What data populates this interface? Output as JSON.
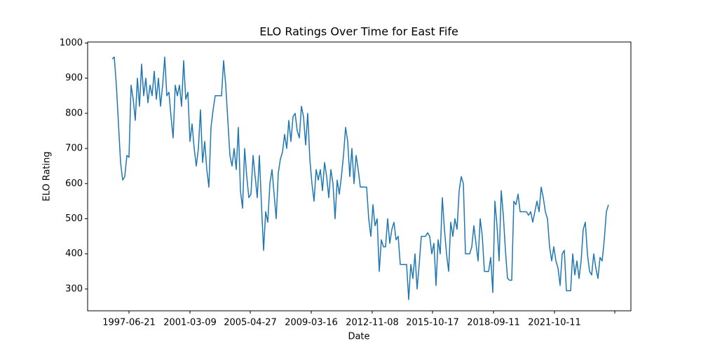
{
  "chart_data": {
    "type": "line",
    "title": "ELO Ratings Over Time for East Fife",
    "xlabel": "Date",
    "ylabel": "ELO Rating",
    "x": [
      0,
      3,
      6,
      9,
      12,
      15,
      18,
      21,
      24,
      27,
      30,
      33,
      36,
      39,
      42,
      45,
      48,
      51,
      54,
      57,
      60,
      63,
      66,
      69,
      72,
      75,
      78,
      81,
      84,
      87,
      90,
      93,
      96,
      99,
      102,
      105,
      108,
      111,
      114,
      117,
      120,
      123,
      126,
      129,
      132,
      135,
      138,
      141,
      144,
      147,
      150,
      153,
      156,
      159,
      162,
      165,
      168,
      171,
      174,
      177,
      180,
      183,
      186,
      189,
      192,
      195,
      198,
      201,
      204,
      207,
      210,
      213,
      216,
      219,
      222,
      225,
      228,
      231,
      234,
      237,
      240,
      243,
      246,
      249,
      252,
      255,
      258,
      261,
      264,
      267,
      270,
      273,
      276,
      279,
      282,
      285,
      288,
      291,
      294,
      297,
      300,
      303,
      306,
      309,
      312,
      315,
      318,
      321,
      324,
      327,
      330,
      333,
      336,
      339,
      342,
      345,
      348,
      351,
      354,
      357,
      360,
      363,
      366,
      369,
      372,
      375,
      378,
      381,
      384,
      387,
      390,
      393,
      396,
      399,
      402,
      405,
      408,
      411,
      414,
      417,
      420,
      423,
      426,
      429,
      432,
      435,
      438,
      441,
      444,
      447,
      450,
      453,
      456,
      459,
      462,
      465,
      468,
      471,
      474,
      477,
      480,
      483,
      486,
      489,
      492,
      495,
      498,
      501,
      504,
      507,
      510,
      513,
      516,
      519,
      522,
      525,
      528,
      531,
      534,
      537,
      540,
      543,
      546,
      549,
      552,
      555,
      558,
      561,
      564,
      567,
      570,
      573,
      576,
      579,
      582,
      585,
      588,
      591,
      594,
      597,
      600,
      603,
      606,
      609,
      612,
      615,
      618,
      621,
      624,
      627,
      630,
      633,
      636,
      639,
      642,
      645,
      648,
      651,
      654,
      657,
      660,
      663,
      666,
      669,
      672,
      675,
      678,
      681,
      684,
      687,
      690,
      693,
      696,
      699,
      702,
      705,
      708
    ],
    "series": [
      {
        "name": "East Fife",
        "color": "#1f77b4",
        "values": [
          955,
          960,
          880,
          770,
          660,
          610,
          620,
          680,
          675,
          880,
          840,
          780,
          900,
          820,
          940,
          850,
          900,
          830,
          880,
          850,
          920,
          840,
          900,
          820,
          880,
          960,
          850,
          860,
          790,
          730,
          880,
          850,
          880,
          820,
          950,
          840,
          860,
          720,
          770,
          700,
          650,
          700,
          810,
          660,
          720,
          640,
          590,
          760,
          810,
          850,
          850,
          850,
          850,
          950,
          880,
          780,
          680,
          650,
          700,
          640,
          760,
          580,
          530,
          700,
          620,
          560,
          570,
          680,
          620,
          560,
          680,
          540,
          410,
          520,
          490,
          600,
          640,
          570,
          500,
          630,
          670,
          690,
          740,
          700,
          780,
          720,
          790,
          800,
          750,
          730,
          820,
          790,
          710,
          800,
          670,
          600,
          550,
          640,
          610,
          640,
          580,
          660,
          620,
          560,
          640,
          600,
          500,
          610,
          570,
          620,
          680,
          760,
          720,
          620,
          700,
          600,
          680,
          640,
          590,
          590,
          590,
          590,
          500,
          450,
          540,
          480,
          500,
          350,
          440,
          420,
          420,
          500,
          430,
          470,
          490,
          440,
          450,
          370,
          370,
          370,
          370,
          270,
          370,
          330,
          400,
          300,
          370,
          450,
          450,
          450,
          460,
          450,
          400,
          430,
          310,
          440,
          400,
          560,
          470,
          400,
          350,
          490,
          450,
          500,
          470,
          580,
          620,
          600,
          400,
          400,
          400,
          420,
          480,
          430,
          380,
          500,
          450,
          350,
          350,
          350,
          390,
          290,
          550,
          480,
          380,
          580,
          510,
          410,
          330,
          325,
          325,
          550,
          540,
          570,
          520,
          520,
          520,
          520,
          510,
          520,
          490,
          520,
          550,
          520,
          590,
          560,
          520,
          500,
          420,
          380,
          420,
          380,
          360,
          310,
          400,
          410,
          295,
          295,
          295,
          400,
          340,
          380,
          330,
          380,
          470,
          490,
          400,
          350,
          340,
          400,
          360,
          330,
          390,
          380,
          440,
          520,
          540
        ]
      }
    ],
    "xlim": [
      -35,
      740
    ],
    "xticks": [
      {
        "value": 24,
        "label": "1997-06-21"
      },
      {
        "value": 111,
        "label": "2001-03-09"
      },
      {
        "value": 197,
        "label": "2005-04-27"
      },
      {
        "value": 284,
        "label": "2009-03-16"
      },
      {
        "value": 371,
        "label": "2012-11-08"
      },
      {
        "value": 457,
        "label": "2015-10-17"
      },
      {
        "value": 544,
        "label": "2018-09-11"
      },
      {
        "value": 631,
        "label": "2021-10-11"
      },
      {
        "value": 717,
        "label": null
      }
    ],
    "ylim": [
      238,
      1003
    ],
    "yticks": [
      300,
      400,
      500,
      600,
      700,
      800,
      900,
      1000
    ]
  }
}
